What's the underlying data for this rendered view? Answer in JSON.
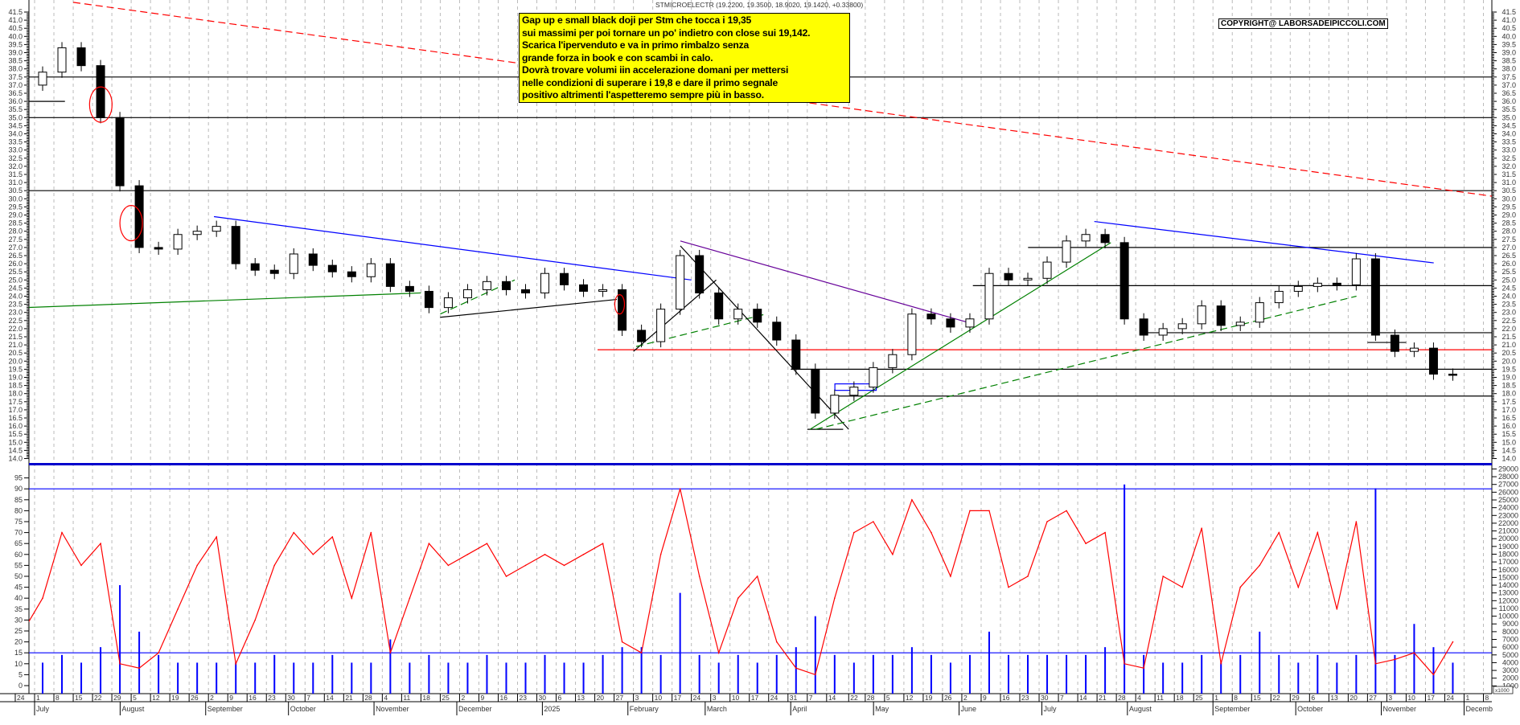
{
  "header": {
    "title": "STMICROELECTR (19.2200, 19.3500, 18.9020, 19.1420, +0.33800)"
  },
  "note": {
    "background": "#ffff00",
    "lines": [
      "Gap up e small black doji per Stm che tocca i 19,35",
      "sui massimi per poi tornare un po' indietro con close sui 19,142.",
      "Scarica l'ipervenduto e va in primo rimbalzo senza",
      "grande forza in book e con scambi in calo.",
      "Dovrà trovare volumi iin accelerazione domani  per mettersi",
      "nelle condizioni di superare i 19,8 e dare il primo segnale",
      "positivo altrimenti l'aspetteremo sempre più in basso."
    ]
  },
  "copyright": "COPYRIGHT@ LABORSADEIPICCOLI.COM",
  "chart_data": {
    "type": "candlestick",
    "symbol": "STMICROELECTR",
    "last_ohlc": {
      "open": 19.22,
      "high": 19.35,
      "low": 18.902,
      "close": 19.142,
      "change": 0.338
    },
    "price_axis": {
      "min": 14.0,
      "max": 41.5,
      "step": 0.5
    },
    "price_weekly_close": {
      "weeks": [
        "2024-06-24",
        "2024-07-01",
        "2024-07-08",
        "2024-07-15",
        "2024-07-22",
        "2024-07-29",
        "2024-08-05",
        "2024-08-12",
        "2024-08-19",
        "2024-08-26",
        "2024-09-02",
        "2024-09-09",
        "2024-09-16",
        "2024-09-23",
        "2024-09-30",
        "2024-10-07",
        "2024-10-14",
        "2024-10-21",
        "2024-10-28",
        "2024-11-04",
        "2024-11-11",
        "2024-11-18",
        "2024-11-25",
        "2024-12-02",
        "2024-12-09",
        "2024-12-16",
        "2024-12-23",
        "2024-12-30",
        "2025-01-06",
        "2025-01-13",
        "2025-01-20",
        "2025-01-27",
        "2025-02-03",
        "2025-02-10",
        "2025-02-17",
        "2025-02-24",
        "2025-03-03",
        "2025-03-10",
        "2025-03-17",
        "2025-03-24",
        "2025-03-31",
        "2025-04-07",
        "2025-04-14",
        "2025-04-21",
        "2025-04-28",
        "2025-05-05",
        "2025-05-12",
        "2025-05-19",
        "2025-05-26",
        "2025-06-02",
        "2025-06-09",
        "2025-06-16",
        "2025-06-23",
        "2025-06-30",
        "2025-07-07",
        "2025-07-14",
        "2025-07-21",
        "2025-07-28",
        "2025-08-04",
        "2025-08-11",
        "2025-08-18",
        "2025-08-25",
        "2025-09-01",
        "2025-09-08",
        "2025-09-15",
        "2025-09-22",
        "2025-09-29",
        "2025-10-06",
        "2025-10-13",
        "2025-10-20",
        "2025-10-27",
        "2025-11-03",
        "2025-11-10",
        "2025-11-17",
        "2025-11-24"
      ],
      "close": [
        37.0,
        37.8,
        39.3,
        38.2,
        35.0,
        30.8,
        27.0,
        26.9,
        27.8,
        28.0,
        28.3,
        26.0,
        25.6,
        25.4,
        26.6,
        25.9,
        25.5,
        25.2,
        26.0,
        24.6,
        24.3,
        23.3,
        23.9,
        24.4,
        24.9,
        24.4,
        24.2,
        25.4,
        24.7,
        24.3,
        24.4,
        21.9,
        21.2,
        23.2,
        26.5,
        24.2,
        22.6,
        23.2,
        22.4,
        21.3,
        19.5,
        16.8,
        17.9,
        18.4,
        19.6,
        20.4,
        22.9,
        22.6,
        22.1,
        22.6,
        25.4,
        25.0,
        25.1,
        26.1,
        27.4,
        27.8,
        27.3,
        22.6,
        21.6,
        22.0,
        22.3,
        23.4,
        22.2,
        22.4,
        23.6,
        24.3,
        24.6,
        24.8,
        24.7,
        26.3,
        21.6,
        20.6,
        20.8,
        19.2,
        19.142
      ],
      "oscillator": [
        25,
        40,
        70,
        55,
        65,
        10,
        8,
        15,
        35,
        55,
        68,
        10,
        30,
        55,
        70,
        60,
        68,
        40,
        70,
        15,
        40,
        65,
        55,
        60,
        65,
        50,
        55,
        60,
        55,
        60,
        65,
        20,
        15,
        60,
        90,
        50,
        15,
        40,
        50,
        20,
        8,
        5,
        40,
        70,
        75,
        60,
        85,
        70,
        50,
        80,
        80,
        45,
        50,
        75,
        80,
        65,
        70,
        10,
        8,
        50,
        45,
        72,
        10,
        45,
        55,
        70,
        45,
        70,
        35,
        75,
        10,
        12,
        15,
        5,
        20
      ],
      "volume_thousands": [
        4,
        4,
        5,
        4,
        6,
        14,
        8,
        5,
        4,
        4,
        4,
        4,
        4,
        5,
        4,
        4,
        5,
        4,
        4,
        7,
        4,
        5,
        4,
        4,
        5,
        4,
        4,
        5,
        4,
        4,
        5,
        6,
        6,
        5,
        13,
        5,
        4,
        5,
        4,
        5,
        6,
        10,
        5,
        4,
        5,
        5,
        6,
        5,
        4,
        5,
        8,
        5,
        5,
        5,
        5,
        5,
        6,
        27,
        5,
        4,
        4,
        5,
        4,
        5,
        8,
        5,
        4,
        5,
        4,
        5,
        26.5,
        5,
        9,
        6,
        4
      ]
    },
    "oscillator_axis": {
      "min": 0,
      "max": 95,
      "step": 5,
      "levels": [
        90,
        15
      ]
    },
    "volume_axis": {
      "min": 1000,
      "max": 29000,
      "step": 1000,
      "unit_label": "x1000"
    },
    "x_ticks": [
      "24",
      "1",
      "8",
      "15",
      "22",
      "29",
      "5",
      "12",
      "19",
      "26",
      "2",
      "9",
      "16",
      "23",
      "30",
      "7",
      "14",
      "21",
      "28",
      "4",
      "11",
      "18",
      "25",
      "2",
      "9",
      "16",
      "23",
      "30",
      "6",
      "13",
      "20",
      "27",
      "3",
      "10",
      "17",
      "24",
      "3",
      "10",
      "17",
      "24",
      "31",
      "7",
      "14",
      "22",
      "28",
      "5",
      "12",
      "19",
      "26",
      "2",
      "9",
      "16",
      "23",
      "30",
      "7",
      "14",
      "21",
      "28",
      "4",
      "11",
      "18",
      "25",
      "1",
      "8",
      "15",
      "22",
      "29",
      "6",
      "13",
      "20",
      "27",
      "3",
      "10",
      "17",
      "24",
      "1",
      "8"
    ],
    "x_tick_dates": [
      "2024-06-24",
      "2024-07-01",
      "2024-07-08",
      "2024-07-15",
      "2024-07-22",
      "2024-07-29",
      "2024-08-05",
      "2024-08-12",
      "2024-08-19",
      "2024-08-26",
      "2024-09-02",
      "2024-09-09",
      "2024-09-16",
      "2024-09-23",
      "2024-09-30",
      "2024-10-07",
      "2024-10-14",
      "2024-10-21",
      "2024-10-28",
      "2024-11-04",
      "2024-11-11",
      "2024-11-18",
      "2024-11-25",
      "2024-12-02",
      "2024-12-09",
      "2024-12-16",
      "2024-12-23",
      "2024-12-30",
      "2025-01-06",
      "2025-01-13",
      "2025-01-20",
      "2025-01-27",
      "2025-02-03",
      "2025-02-10",
      "2025-02-17",
      "2025-02-24",
      "2025-03-03",
      "2025-03-10",
      "2025-03-17",
      "2025-03-24",
      "2025-03-31",
      "2025-04-07",
      "2025-04-14",
      "2025-04-22",
      "2025-04-28",
      "2025-05-05",
      "2025-05-12",
      "2025-05-19",
      "2025-05-26",
      "2025-06-02",
      "2025-06-09",
      "2025-06-16",
      "2025-06-23",
      "2025-06-30",
      "2025-07-07",
      "2025-07-14",
      "2025-07-21",
      "2025-07-28",
      "2025-08-04",
      "2025-08-11",
      "2025-08-18",
      "2025-08-25",
      "2025-09-01",
      "2025-09-08",
      "2025-09-15",
      "2025-09-22",
      "2025-09-29",
      "2025-10-06",
      "2025-10-13",
      "2025-10-20",
      "2025-10-27",
      "2025-11-03",
      "2025-11-10",
      "2025-11-17",
      "2025-11-24",
      "2025-12-01",
      "2025-12-08"
    ],
    "months": [
      {
        "label": "July",
        "date": "2024-07-01"
      },
      {
        "label": "August",
        "date": "2024-08-01"
      },
      {
        "label": "September",
        "date": "2024-09-01"
      },
      {
        "label": "October",
        "date": "2024-10-01"
      },
      {
        "label": "November",
        "date": "2024-11-01"
      },
      {
        "label": "December",
        "date": "2024-12-01"
      },
      {
        "label": "2025",
        "date": "2025-01-01"
      },
      {
        "label": "February",
        "date": "2025-02-01"
      },
      {
        "label": "March",
        "date": "2025-03-01"
      },
      {
        "label": "April",
        "date": "2025-04-01"
      },
      {
        "label": "May",
        "date": "2025-05-01"
      },
      {
        "label": "June",
        "date": "2025-06-01"
      },
      {
        "label": "July",
        "date": "2025-07-01"
      },
      {
        "label": "August",
        "date": "2025-08-01"
      },
      {
        "label": "September",
        "date": "2025-09-01"
      },
      {
        "label": "October",
        "date": "2025-10-01"
      },
      {
        "label": "November",
        "date": "2025-11-01"
      },
      {
        "label": "Decemb",
        "date": "2025-12-01"
      }
    ],
    "horizontal_levels": [
      {
        "price": 37.5,
        "from": "2024-06-24",
        "color": "#000000"
      },
      {
        "price": 36.0,
        "from": "2024-06-24",
        "to": "2024-07-12",
        "color": "#000000"
      },
      {
        "price": 35.0,
        "from": "2024-06-24",
        "color": "#000000"
      },
      {
        "price": 30.5,
        "from": "2024-06-24",
        "color": "#000000"
      },
      {
        "price": 27.0,
        "from": "2025-06-26",
        "color": "#000000"
      },
      {
        "price": 24.65,
        "from": "2025-06-06",
        "color": "#000000"
      },
      {
        "price": 21.75,
        "from": "2025-08-08",
        "color": "#000000"
      },
      {
        "price": 21.15,
        "from": "2025-10-27",
        "to": "2025-11-10",
        "color": "#000000"
      },
      {
        "price": 20.7,
        "from": "2025-01-21",
        "color": "#ff0000"
      },
      {
        "price": 19.5,
        "from": "2025-04-01",
        "color": "#000000"
      },
      {
        "price": 17.85,
        "from": "2025-04-18",
        "color": "#000000"
      },
      {
        "price": 15.8,
        "from": "2025-04-07",
        "to": "2025-04-20",
        "color": "#000000"
      }
    ],
    "trendlines": [
      {
        "from": [
          "2024-07-15",
          42.1
        ],
        "to": [
          "2025-12-18",
          30.0
        ],
        "color": "#ff0000",
        "dashed": true
      },
      {
        "from": [
          "2024-09-04",
          28.9
        ],
        "to": [
          "2025-02-24",
          25.0
        ],
        "color": "#0000ff",
        "dashed": false
      },
      {
        "from": [
          "2024-06-28",
          23.3
        ],
        "to": [
          "2024-11-18",
          24.2
        ],
        "color": "#008000",
        "dashed": false
      },
      {
        "from": [
          "2024-11-25",
          22.7
        ],
        "to": [
          "2025-01-28",
          23.8
        ],
        "color": "#000000",
        "dashed": false
      },
      {
        "from": [
          "2024-11-25",
          22.9
        ],
        "to": [
          "2024-12-22",
          25.0
        ],
        "color": "#008000",
        "dashed": true
      },
      {
        "from": [
          "2025-02-03",
          20.6
        ],
        "to": [
          "2025-03-05",
          25.0
        ],
        "color": "#000000",
        "dashed": false
      },
      {
        "from": [
          "2025-02-04",
          20.9
        ],
        "to": [
          "2025-03-23",
          22.9
        ],
        "color": "#008000",
        "dashed": true
      },
      {
        "from": [
          "2025-02-20",
          27.4
        ],
        "to": [
          "2025-06-06",
          22.3
        ],
        "color": "#660099",
        "dashed": false
      },
      {
        "from": [
          "2025-02-20",
          27.1
        ],
        "to": [
          "2025-04-22",
          15.8
        ],
        "color": "#000000",
        "dashed": false
      },
      {
        "from": [
          "2025-04-08",
          15.8
        ],
        "to": [
          "2025-07-26",
          27.3
        ],
        "color": "#008000",
        "dashed": false
      },
      {
        "from": [
          "2025-04-10",
          15.8
        ],
        "to": [
          "2025-10-23",
          24.0
        ],
        "color": "#008000",
        "dashed": true
      },
      {
        "from": [
          "2025-07-20",
          28.6
        ],
        "to": [
          "2025-11-20",
          26.05
        ],
        "color": "#0000ff",
        "dashed": false
      }
    ],
    "boxes": [
      {
        "from": [
          "2025-04-17",
          18.6
        ],
        "to": [
          "2025-05-02",
          18.2
        ],
        "color": "#0000ff"
      }
    ],
    "circles": [
      {
        "date": "2024-07-25",
        "price": 35.8,
        "color": "#ff0000"
      },
      {
        "date": "2024-08-05",
        "price": 28.5,
        "color": "#ff0000"
      },
      {
        "date": "2025-01-29",
        "price": 23.5,
        "color": "#ff0000"
      }
    ],
    "colors": {
      "candle_up": "#ffffff",
      "candle_down": "#000000",
      "oscillator": "#ff0000",
      "volume": "#0000ff",
      "grid": "#bbbbbb",
      "separator": "#0000cc"
    },
    "grid": true
  }
}
